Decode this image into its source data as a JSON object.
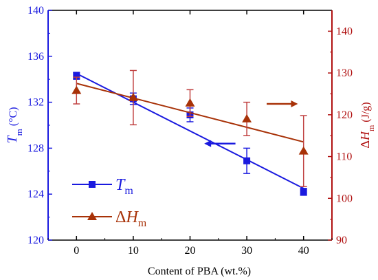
{
  "chart_data": {
    "type": "line",
    "x": [
      0,
      10,
      20,
      30,
      40
    ],
    "xlabel": "Content of PBA (wt.%)",
    "xlim": [
      -5,
      45
    ],
    "xticks": [
      "0",
      "10",
      "20",
      "30",
      "40"
    ],
    "title": "",
    "y_left": {
      "label_symbol": "T",
      "label_sub": "m",
      "label_unit": " (°C)",
      "lim": [
        120,
        140
      ],
      "ticks": [
        "120",
        "124",
        "128",
        "132",
        "136",
        "140"
      ],
      "color": "#1a1adf"
    },
    "y_right": {
      "label_prefix": "Δ",
      "label_symbol": "H",
      "label_sub": "m",
      "label_unit": " (J/g)",
      "lim": [
        90,
        145
      ],
      "ticks": [
        "90",
        "100",
        "110",
        "120",
        "130",
        "140"
      ],
      "color": "#b01010"
    },
    "series": [
      {
        "name": "Tm",
        "axis": "left",
        "marker": "square",
        "color": "#1a1adf",
        "values": [
          134.3,
          132.3,
          130.9,
          126.9,
          124.2
        ],
        "errors": [
          0.3,
          0.5,
          0.6,
          1.1,
          0.3
        ],
        "fit": [
          134.5,
          124.5
        ]
      },
      {
        "name": "ΔHm",
        "axis": "right",
        "marker": "triangle",
        "color": "#a83208",
        "values": [
          125.8,
          124.1,
          122.8,
          119.0,
          111.3
        ],
        "errors": [
          3.2,
          6.5,
          3.2,
          4.0,
          8.5
        ],
        "fit": [
          127.5,
          113.5
        ]
      }
    ],
    "legend": {
      "placement": "bottom-left",
      "entries": [
        {
          "symbol": "T",
          "sub": "m",
          "prefix": ""
        },
        {
          "symbol": "H",
          "sub": "m",
          "prefix": "Δ"
        }
      ]
    },
    "annotations": [
      {
        "type": "arrow",
        "direction": "left",
        "axis": "left",
        "color": "#1a1adf"
      },
      {
        "type": "arrow",
        "direction": "right",
        "axis": "right",
        "color": "#a83208"
      }
    ]
  }
}
